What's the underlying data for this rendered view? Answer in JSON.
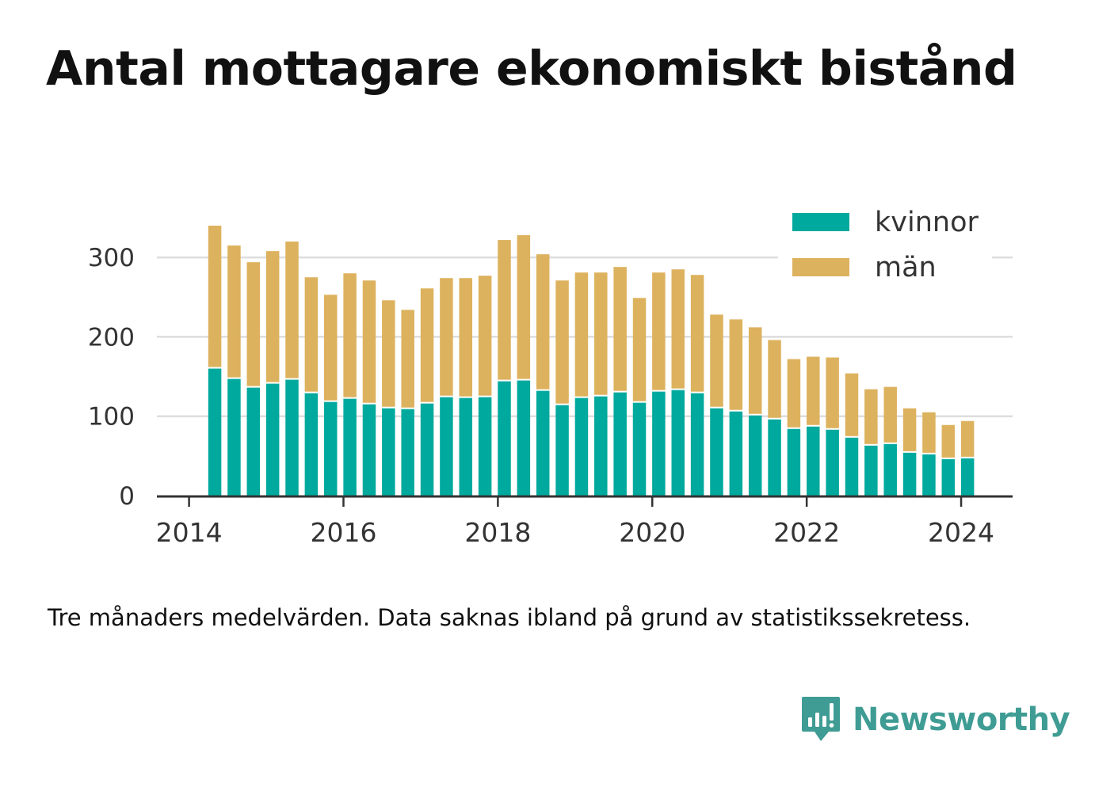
{
  "chart_data": {
    "type": "bar",
    "stacked": true,
    "title": "Antal mottagare ekonomiskt bistånd",
    "xlabel": "",
    "ylabel": "",
    "x": [
      "2014-05",
      "2014-08",
      "2014-11",
      "2015-02",
      "2015-05",
      "2015-08",
      "2015-11",
      "2016-02",
      "2016-05",
      "2016-08",
      "2016-11",
      "2017-02",
      "2017-05",
      "2017-08",
      "2017-11",
      "2018-02",
      "2018-05",
      "2018-08",
      "2018-11",
      "2019-02",
      "2019-05",
      "2019-08",
      "2019-11",
      "2020-02",
      "2020-05",
      "2020-08",
      "2020-11",
      "2021-02",
      "2021-05",
      "2021-08",
      "2021-11",
      "2022-02",
      "2022-05",
      "2022-08",
      "2022-11",
      "2023-02",
      "2023-05",
      "2023-08",
      "2023-11",
      "2024-02"
    ],
    "xlim": [
      "2013-08",
      "2024-09"
    ],
    "xticks": [
      "2014",
      "2016",
      "2018",
      "2020",
      "2022",
      "2024"
    ],
    "yticks": [
      0,
      100,
      200,
      300
    ],
    "ylim": [
      0,
      350
    ],
    "grid": "horizontal",
    "legend_position": "top-right",
    "series": [
      {
        "name": "kvinnor",
        "color": "#00a99d",
        "values": [
          160,
          147,
          136,
          141,
          146,
          129,
          118,
          122,
          115,
          110,
          109,
          116,
          124,
          123,
          124,
          144,
          145,
          132,
          114,
          123,
          125,
          130,
          117,
          131,
          133,
          129,
          110,
          106,
          101,
          96,
          84,
          87,
          83,
          73,
          63,
          65,
          54,
          52,
          46,
          47
        ]
      },
      {
        "name": "män",
        "color": "#ddb25e",
        "values": [
          180,
          168,
          158,
          167,
          174,
          146,
          135,
          158,
          156,
          136,
          125,
          145,
          150,
          151,
          153,
          178,
          183,
          172,
          157,
          158,
          156,
          158,
          132,
          150,
          152,
          149,
          118,
          116,
          111,
          100,
          88,
          88,
          91,
          81,
          71,
          72,
          56,
          53,
          43,
          47
        ]
      }
    ]
  },
  "footnote": "Tre månaders medelvärden. Data saknas ibland på grund av statistikssekretess.",
  "brand": {
    "name": "Newsworthy",
    "icon": "newsworthy-logo-icon",
    "color": "#3f9c94"
  }
}
